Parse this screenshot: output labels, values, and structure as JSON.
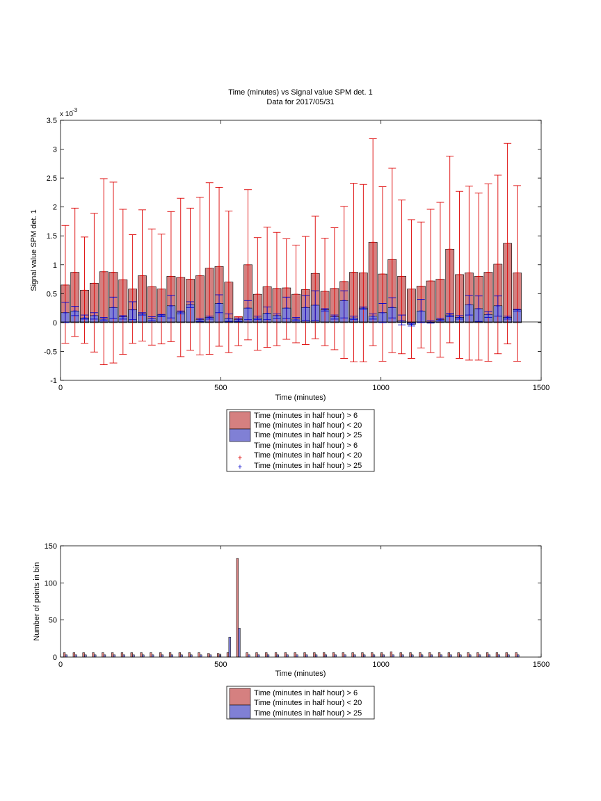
{
  "colors": {
    "red_bar": "#d58080",
    "blue_bar": "#8080d5",
    "red_err": "#dd0000",
    "blue_err": "#0000cc",
    "axis": "#000000"
  },
  "chart_data": [
    {
      "type": "bar",
      "title": "Time (minutes) vs Signal value SPM det. 1",
      "subtitle": "Data for 2017/05/31",
      "xlabel": "Time (minutes)",
      "ylabel": "Signal value SPM det. 1",
      "exponent_label": "x 10",
      "exponent_power": "-3",
      "xlim": [
        0,
        1500
      ],
      "ylim": [
        -1,
        3.5
      ],
      "xticks": [
        0,
        500,
        1000,
        1500
      ],
      "yticks": [
        -1,
        -0.5,
        0,
        0.5,
        1,
        1.5,
        2,
        2.5,
        3,
        3.5
      ],
      "legend_entries": [
        "Time (minutes in half hour) > 6",
        "Time (minutes in half hour) < 20",
        "Time (minutes in half hour) > 25",
        "Time (minutes in half hour) > 6",
        "Time (minutes in half hour) < 20",
        "Time (minutes in half hour) > 25"
      ],
      "legend_placement": "below",
      "x": [
        15,
        45,
        75,
        105,
        135,
        165,
        195,
        225,
        255,
        285,
        315,
        345,
        375,
        405,
        435,
        465,
        495,
        525,
        555,
        585,
        615,
        645,
        675,
        705,
        735,
        765,
        795,
        825,
        855,
        885,
        915,
        945,
        975,
        1005,
        1035,
        1065,
        1095,
        1125,
        1155,
        1185,
        1215,
        1245,
        1275,
        1305,
        1335,
        1365,
        1395,
        1425
      ],
      "series": [
        {
          "values": [
            0.65,
            0.87,
            0.56,
            0.68,
            0.88,
            0.87,
            0.74,
            0.58,
            0.81,
            0.62,
            0.58,
            0.8,
            0.78,
            0.75,
            0.81,
            0.94,
            0.97,
            0.7,
            0.1,
            1.0,
            0.49,
            0.62,
            0.59,
            0.6,
            0.49,
            0.57,
            0.85,
            0.54,
            0.59,
            0.71,
            0.87,
            0.86,
            1.39,
            0.84,
            1.09,
            0.8,
            0.58,
            0.63,
            0.72,
            0.75,
            1.27,
            0.83,
            0.86,
            0.8,
            0.87,
            1.01,
            1.37,
            0.86
          ],
          "err_low": [
            -0.36,
            -0.24,
            -0.36,
            -0.51,
            -0.73,
            -0.7,
            -0.55,
            -0.36,
            -0.32,
            -0.39,
            -0.37,
            -0.33,
            -0.59,
            -0.48,
            -0.56,
            -0.55,
            -0.41,
            -0.52,
            -0.4,
            -0.3,
            -0.48,
            -0.43,
            -0.4,
            -0.29,
            -0.35,
            -0.38,
            -0.28,
            -0.4,
            -0.47,
            -0.62,
            -0.68,
            -0.68,
            -0.4,
            -0.67,
            -0.52,
            -0.54,
            -0.62,
            -0.44,
            -0.52,
            -0.6,
            -0.35,
            -0.62,
            -0.65,
            -0.65,
            -0.67,
            -0.54,
            -0.37,
            -0.67
          ],
          "err_high": [
            1.68,
            1.98,
            1.48,
            1.89,
            2.49,
            2.43,
            1.96,
            1.52,
            1.95,
            1.62,
            1.53,
            1.92,
            2.15,
            1.98,
            2.17,
            2.42,
            2.34,
            1.93,
            0.1,
            2.3,
            1.47,
            1.65,
            1.56,
            1.45,
            1.34,
            1.49,
            1.84,
            1.46,
            1.64,
            2.01,
            2.41,
            2.39,
            3.18,
            2.35,
            2.67,
            2.12,
            1.78,
            1.74,
            1.96,
            2.08,
            2.88,
            2.27,
            2.36,
            2.24,
            2.4,
            2.55,
            3.1,
            2.37
          ]
        },
        {
          "values": [
            0.17,
            0.2,
            0.08,
            0.12,
            0.06,
            0.26,
            0.1,
            0.22,
            0.15,
            0.07,
            0.13,
            0.29,
            0.18,
            0.31,
            0.05,
            0.09,
            0.33,
            0.07,
            0.05,
            0.25,
            0.08,
            0.16,
            0.12,
            0.25,
            0.06,
            0.26,
            0.3,
            0.22,
            0.1,
            0.38,
            0.08,
            0.25,
            0.11,
            0.17,
            0.26,
            0.03,
            -0.03,
            0.2,
            0.01,
            0.05,
            0.13,
            0.09,
            0.31,
            0.24,
            0.14,
            0.29,
            0.09,
            0.22
          ],
          "err_low": [
            0.0,
            0.12,
            0.06,
            0.06,
            0.03,
            0.07,
            0.06,
            0.05,
            0.13,
            0.03,
            0.1,
            0.08,
            0.15,
            0.26,
            0.02,
            0.06,
            0.17,
            0.02,
            0.02,
            0.05,
            0.05,
            0.05,
            0.07,
            0.07,
            0.03,
            0.04,
            0.04,
            0.2,
            0.06,
            0.08,
            0.05,
            0.23,
            0.06,
            0.0,
            0.08,
            -0.04,
            -0.06,
            0.0,
            -0.01,
            0.03,
            0.1,
            0.06,
            0.13,
            0.02,
            0.09,
            0.11,
            0.06,
            0.2
          ],
          "err_high": [
            0.35,
            0.28,
            0.13,
            0.17,
            0.09,
            0.44,
            0.12,
            0.36,
            0.17,
            0.1,
            0.14,
            0.47,
            0.2,
            0.36,
            0.07,
            0.11,
            0.48,
            0.15,
            0.07,
            0.38,
            0.11,
            0.27,
            0.15,
            0.44,
            0.09,
            0.47,
            0.55,
            0.24,
            0.13,
            0.55,
            0.11,
            0.27,
            0.15,
            0.33,
            0.43,
            0.13,
            -0.01,
            0.4,
            0.03,
            0.07,
            0.16,
            0.12,
            0.47,
            0.46,
            0.19,
            0.46,
            0.11,
            0.23
          ]
        }
      ]
    },
    {
      "type": "bar",
      "xlabel": "Time (minutes)",
      "ylabel": "Number of points in bin",
      "xlim": [
        0,
        1500
      ],
      "ylim": [
        0,
        150
      ],
      "xticks": [
        0,
        500,
        1000,
        1500
      ],
      "yticks": [
        0,
        50,
        100,
        150
      ],
      "legend_entries": [
        "Time (minutes in half hour) > 6",
        "Time (minutes in half hour) < 20",
        "Time (minutes in half hour) > 25"
      ],
      "legend_placement": "below",
      "x": [
        15,
        45,
        75,
        105,
        135,
        165,
        195,
        225,
        255,
        285,
        315,
        345,
        375,
        405,
        435,
        465,
        495,
        525,
        555,
        585,
        615,
        645,
        675,
        705,
        735,
        765,
        795,
        825,
        855,
        885,
        915,
        945,
        975,
        1005,
        1035,
        1065,
        1095,
        1125,
        1155,
        1185,
        1215,
        1245,
        1275,
        1305,
        1335,
        1365,
        1395,
        1425
      ],
      "series": [
        {
          "values": [
            6,
            6,
            6,
            6,
            6,
            6,
            6,
            6,
            6,
            6,
            6,
            6,
            6,
            6,
            6,
            5,
            5,
            6,
            133,
            6,
            6,
            6,
            6,
            6,
            6,
            6,
            6,
            6,
            6,
            6,
            6,
            6,
            6,
            6,
            7,
            6,
            6,
            6,
            6,
            6,
            6,
            6,
            6,
            6,
            6,
            6,
            6,
            6
          ]
        },
        {
          "values": [
            3,
            3,
            3,
            3,
            3,
            3,
            3,
            3,
            3,
            3,
            3,
            3,
            3,
            3,
            3,
            3,
            3,
            27,
            39,
            3,
            3,
            3,
            3,
            3,
            3,
            3,
            3,
            3,
            3,
            3,
            3,
            3,
            3,
            3,
            3,
            3,
            3,
            3,
            3,
            3,
            3,
            3,
            3,
            3,
            3,
            3,
            3,
            3
          ]
        }
      ]
    }
  ]
}
